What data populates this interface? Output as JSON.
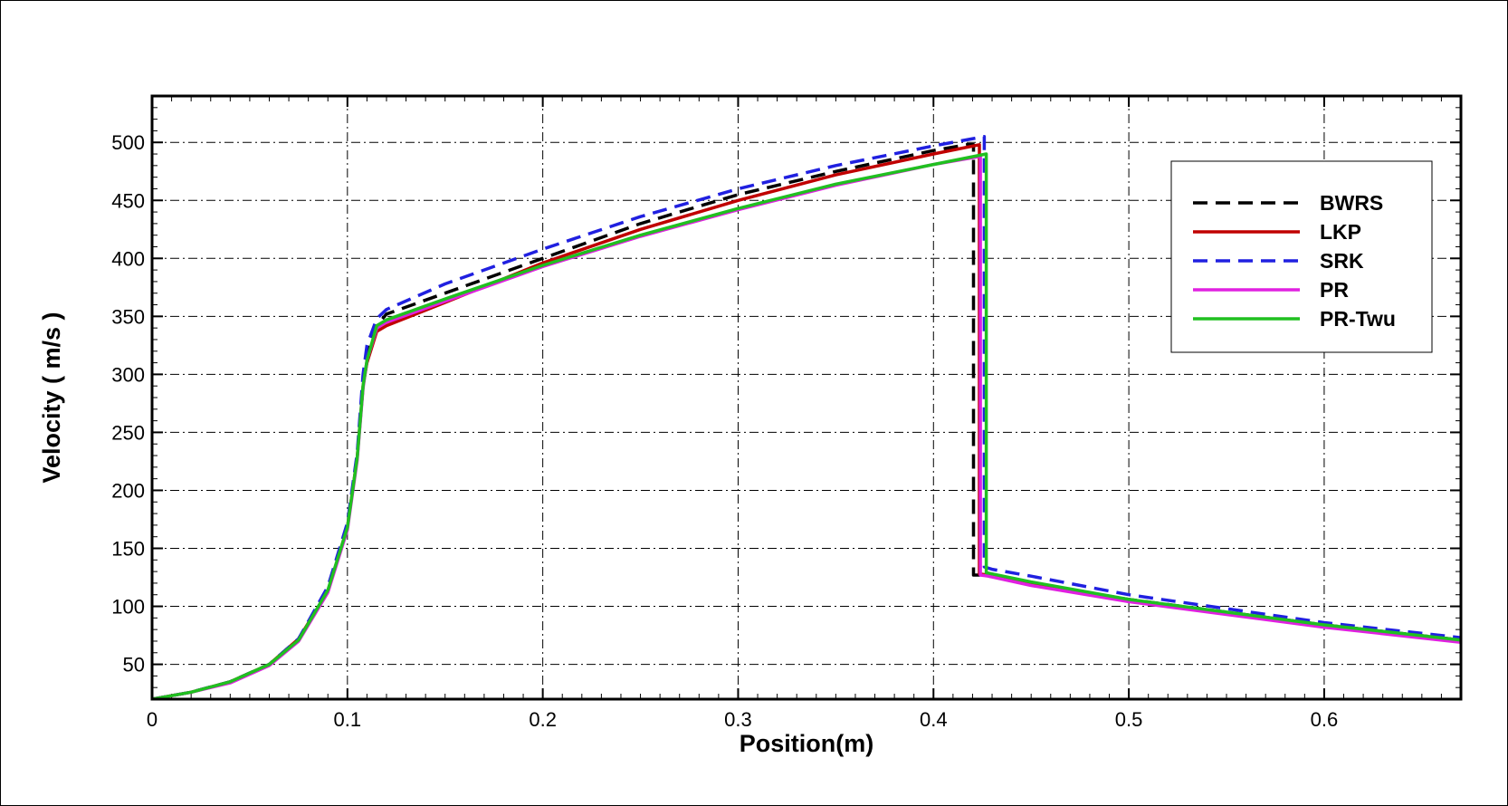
{
  "chart_data": {
    "type": "line",
    "title": "",
    "xlabel": "Position(m)",
    "ylabel": "Velocity ( m/s )",
    "xlim": [
      0,
      0.67
    ],
    "ylim": [
      20,
      540
    ],
    "xticks": [
      "0",
      "0.1",
      "0.2",
      "0.3",
      "0.4",
      "0.5",
      "0.6"
    ],
    "xtick_values": [
      0,
      0.1,
      0.2,
      0.3,
      0.4,
      0.5,
      0.6
    ],
    "yticks": [
      "50",
      "100",
      "150",
      "200",
      "250",
      "300",
      "350",
      "400",
      "450",
      "500"
    ],
    "ytick_values": [
      50,
      100,
      150,
      200,
      250,
      300,
      350,
      400,
      450,
      500
    ],
    "grid": true,
    "legend_position": "top-right",
    "series": [
      {
        "name": "BWRS",
        "color": "#000000",
        "dashed": true,
        "x": [
          0,
          0.02,
          0.04,
          0.06,
          0.075,
          0.09,
          0.1,
          0.105,
          0.108,
          0.11,
          0.113,
          0.12,
          0.15,
          0.2,
          0.25,
          0.3,
          0.35,
          0.4,
          0.417,
          0.4205,
          0.4205,
          0.425,
          0.45,
          0.5,
          0.55,
          0.6,
          0.67
        ],
        "y": [
          20,
          26,
          35,
          50,
          72,
          115,
          170,
          230,
          290,
          318,
          338,
          352,
          370,
          400,
          430,
          455,
          475,
          493,
          498,
          498,
          127,
          127,
          120,
          106,
          95,
          84,
          71
        ]
      },
      {
        "name": "LKP",
        "color": "#c00000",
        "dashed": false,
        "x": [
          0,
          0.02,
          0.04,
          0.06,
          0.075,
          0.09,
          0.1,
          0.105,
          0.108,
          0.11,
          0.115,
          0.12,
          0.15,
          0.2,
          0.25,
          0.3,
          0.35,
          0.4,
          0.4235,
          0.4235,
          0.428,
          0.45,
          0.5,
          0.55,
          0.6,
          0.67
        ],
        "y": [
          20,
          26,
          35,
          50,
          72,
          113,
          168,
          228,
          290,
          310,
          337,
          342,
          362,
          396,
          425,
          450,
          472,
          490,
          498,
          128,
          127,
          120,
          105,
          94,
          83,
          70
        ]
      },
      {
        "name": "SRK",
        "color": "#2020e0",
        "dashed": true,
        "x": [
          0,
          0.02,
          0.04,
          0.06,
          0.075,
          0.09,
          0.1,
          0.105,
          0.108,
          0.11,
          0.115,
          0.12,
          0.15,
          0.2,
          0.25,
          0.3,
          0.35,
          0.4,
          0.426,
          0.426,
          0.43,
          0.45,
          0.5,
          0.55,
          0.6,
          0.67
        ],
        "y": [
          20,
          26,
          35,
          50,
          72,
          117,
          172,
          232,
          300,
          325,
          348,
          356,
          378,
          408,
          436,
          460,
          480,
          497,
          505,
          134,
          132,
          126,
          110,
          98,
          86,
          73
        ]
      },
      {
        "name": "PR",
        "color": "#e020e0",
        "dashed": false,
        "x": [
          0,
          0.02,
          0.04,
          0.06,
          0.075,
          0.09,
          0.1,
          0.105,
          0.108,
          0.11,
          0.115,
          0.12,
          0.15,
          0.2,
          0.25,
          0.3,
          0.35,
          0.4,
          0.424,
          0.424,
          0.428,
          0.45,
          0.5,
          0.55,
          0.6,
          0.67
        ],
        "y": [
          20,
          26,
          34,
          49,
          70,
          112,
          166,
          226,
          288,
          312,
          340,
          345,
          363,
          393,
          419,
          442,
          463,
          481,
          488,
          127,
          126,
          118,
          104,
          93,
          82,
          69
        ]
      },
      {
        "name": "PR-Twu",
        "color": "#20c020",
        "dashed": false,
        "x": [
          0,
          0.02,
          0.04,
          0.06,
          0.075,
          0.09,
          0.1,
          0.105,
          0.108,
          0.11,
          0.115,
          0.12,
          0.15,
          0.2,
          0.25,
          0.3,
          0.35,
          0.4,
          0.427,
          0.427,
          0.43,
          0.45,
          0.5,
          0.55,
          0.6,
          0.67
        ],
        "y": [
          20,
          26,
          35,
          50,
          71,
          114,
          168,
          228,
          290,
          312,
          342,
          347,
          365,
          394,
          420,
          443,
          464,
          481,
          490,
          129,
          128,
          121,
          106,
          95,
          84,
          71
        ]
      }
    ]
  }
}
